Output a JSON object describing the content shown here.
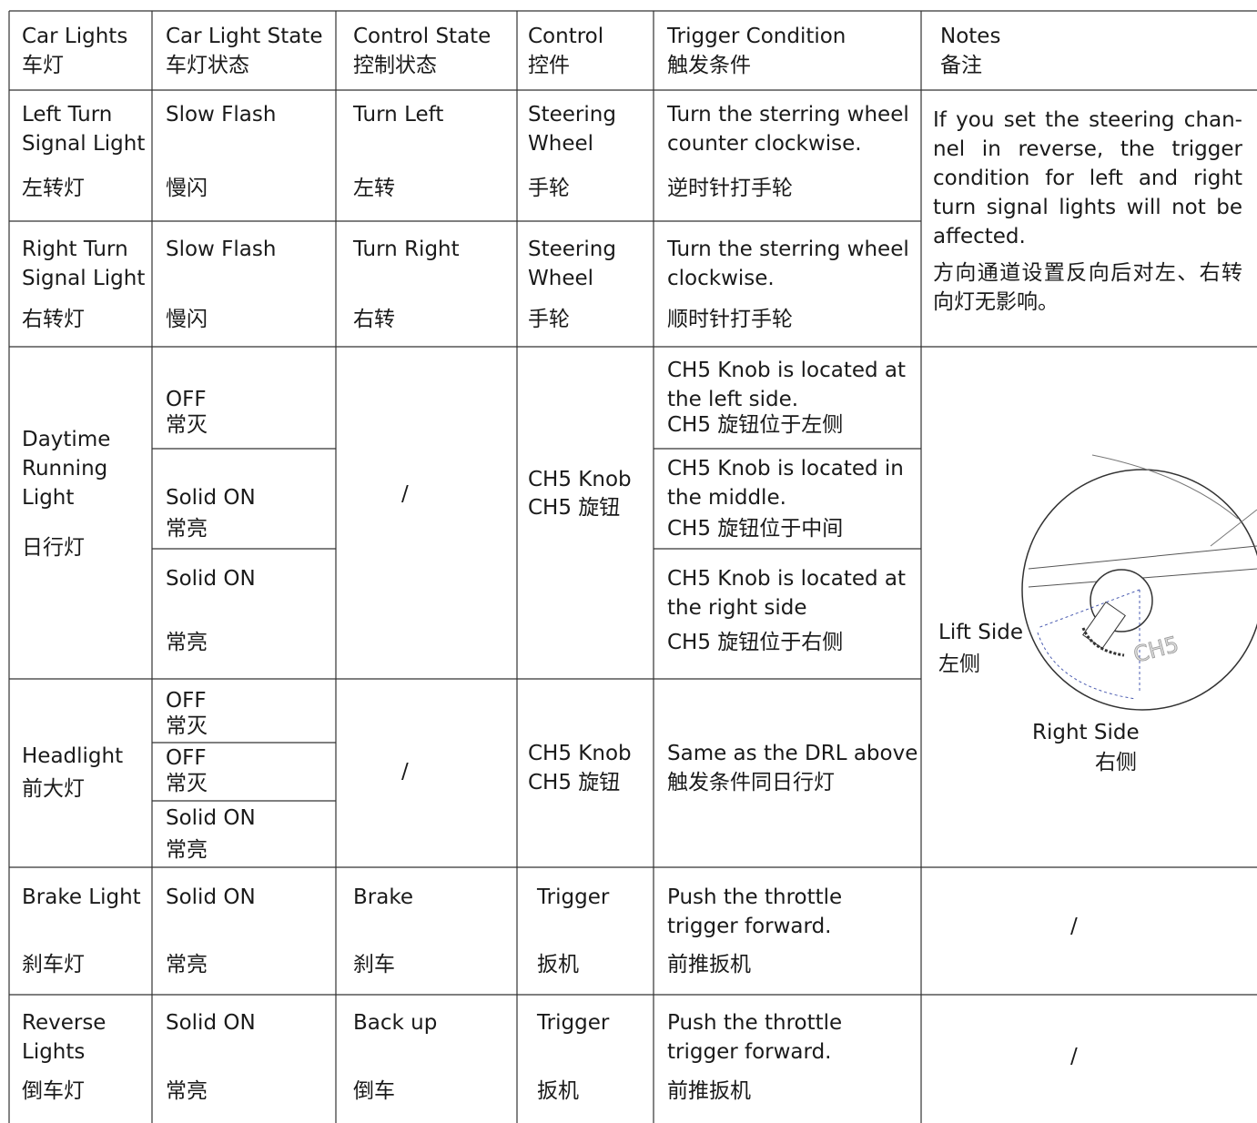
{
  "header": [
    [
      "Car Lights",
      "车灯"
    ],
    [
      "Car Light State",
      "车灯状态"
    ],
    [
      "Control State",
      "控制状态"
    ],
    [
      "Control",
      "控件"
    ],
    [
      "Trigger Condition",
      "触发条件"
    ],
    [
      "Notes",
      "备注"
    ]
  ],
  "rows": [
    {
      "car_light": [
        "Left Turn",
        "Signal Light",
        "左转灯"
      ],
      "state": [
        "Slow Flash",
        "慢闪"
      ],
      "control_state": [
        "Turn Left",
        "左转"
      ],
      "control": [
        "Steering",
        "Wheel",
        "手轮"
      ],
      "trigger": [
        "Turn the sterring wheel",
        "counter clockwise.",
        "逆时针打手轮"
      ]
    },
    {
      "car_light": [
        "Right Turn",
        "Signal Light",
        "右转灯"
      ],
      "state": [
        "Slow Flash",
        "慢闪"
      ],
      "control_state": [
        "Turn Right",
        "右转"
      ],
      "control": [
        "Steering",
        "Wheel",
        "手轮"
      ],
      "trigger": [
        "Turn the sterring wheel",
        "clockwise.",
        "顺时针打手轮"
      ]
    },
    {
      "car_light": [
        "Daytime",
        "Running",
        "Light",
        "日行灯"
      ],
      "state": [
        [
          "OFF",
          "常灭"
        ],
        [
          "Solid ON",
          "常亮"
        ],
        [
          "Solid ON",
          "常亮"
        ]
      ],
      "control_state": "/",
      "control": [
        "CH5 Knob",
        "CH5 旋钮"
      ],
      "trigger": [
        [
          "CH5 Knob is located at",
          "the left side.",
          "CH5 旋钮位于左侧"
        ],
        [
          "CH5 Knob is located in",
          "the middle.",
          "CH5 旋钮位于中间"
        ],
        [
          "CH5 Knob is located at",
          "the right side",
          "CH5 旋钮位于右侧"
        ]
      ]
    },
    {
      "car_light": [
        "Headlight",
        "前大灯"
      ],
      "state": [
        [
          "OFF",
          "常灭"
        ],
        [
          "OFF",
          "常灭"
        ],
        [
          "Solid ON",
          "常亮"
        ]
      ],
      "control_state": "/",
      "control": [
        "CH5 Knob",
        "CH5 旋钮"
      ],
      "trigger": [
        "Same as the DRL above",
        "触发条件同日行灯"
      ]
    },
    {
      "car_light": [
        "Brake Light",
        "刹车灯"
      ],
      "state": [
        "Solid ON",
        "常亮"
      ],
      "control_state": [
        "Brake",
        "刹车"
      ],
      "control": [
        "Trigger",
        "扳机"
      ],
      "trigger": [
        "Push the throttle",
        "trigger forward.",
        "前推扳机"
      ]
    },
    {
      "car_light": [
        "Reverse",
        "Lights",
        "倒车灯"
      ],
      "state": [
        "Solid ON",
        "常亮"
      ],
      "control_state": [
        "Back up",
        "倒车"
      ],
      "control": [
        "Trigger",
        "扳机"
      ],
      "trigger": [
        "Push the throttle",
        "trigger forward.",
        "前推扳机"
      ]
    }
  ],
  "notes": {
    "turn_signal_en": "If you set the steering chan-nel in reverse, the trigger condition for left and right turn signal lights will not be affected.",
    "turn_signal_zh": "方向通道设置反向后对左、右转向灯无影响。",
    "diagram": {
      "left_side": [
        "Lift Side",
        "左侧"
      ],
      "right_side": [
        "Right Side",
        "右侧"
      ],
      "knob": "CH5"
    },
    "brake": "/",
    "reverse": "/"
  }
}
